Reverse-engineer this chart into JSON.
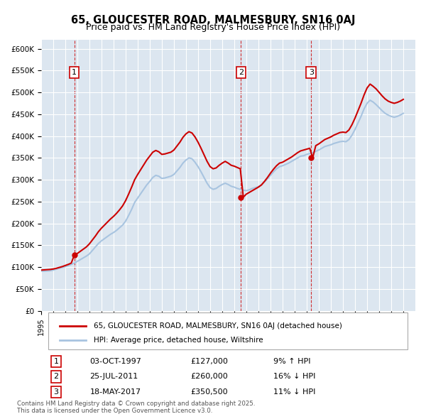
{
  "title": "65, GLOUCESTER ROAD, MALMESBURY, SN16 0AJ",
  "subtitle": "Price paid vs. HM Land Registry's House Price Index (HPI)",
  "xlabel": "",
  "ylabel": "",
  "ylim": [
    0,
    620000
  ],
  "yticks": [
    0,
    50000,
    100000,
    150000,
    200000,
    250000,
    300000,
    350000,
    400000,
    450000,
    500000,
    550000,
    600000
  ],
  "xlim_start": 1995.0,
  "xlim_end": 2026.0,
  "bg_color": "#dce6f0",
  "plot_bg_color": "#dce6f0",
  "grid_color": "#ffffff",
  "hpi_color": "#a8c4e0",
  "price_color": "#cc0000",
  "sale_marker_color": "#cc0000",
  "vline_color": "#cc0000",
  "transactions": [
    {
      "num": 1,
      "date_num": 1997.75,
      "price": 127000,
      "date_str": "03-OCT-1997",
      "pct": "9%",
      "dir": "↑"
    },
    {
      "num": 2,
      "date_num": 2011.56,
      "price": 260000,
      "date_str": "25-JUL-2011",
      "pct": "16%",
      "dir": "↓"
    },
    {
      "num": 3,
      "date_num": 2017.37,
      "price": 350500,
      "date_str": "18-MAY-2017",
      "pct": "11%",
      "dir": "↓"
    }
  ],
  "legend_label_price": "65, GLOUCESTER ROAD, MALMESBURY, SN16 0AJ (detached house)",
  "legend_label_hpi": "HPI: Average price, detached house, Wiltshire",
  "footnote": "Contains HM Land Registry data © Crown copyright and database right 2025.\nThis data is licensed under the Open Government Licence v3.0.",
  "hpi_data_x": [
    1995.0,
    1995.25,
    1995.5,
    1995.75,
    1996.0,
    1996.25,
    1996.5,
    1996.75,
    1997.0,
    1997.25,
    1997.5,
    1997.75,
    1998.0,
    1998.25,
    1998.5,
    1998.75,
    1999.0,
    1999.25,
    1999.5,
    1999.75,
    2000.0,
    2000.25,
    2000.5,
    2000.75,
    2001.0,
    2001.25,
    2001.5,
    2001.75,
    2002.0,
    2002.25,
    2002.5,
    2002.75,
    2003.0,
    2003.25,
    2003.5,
    2003.75,
    2004.0,
    2004.25,
    2004.5,
    2004.75,
    2005.0,
    2005.25,
    2005.5,
    2005.75,
    2006.0,
    2006.25,
    2006.5,
    2006.75,
    2007.0,
    2007.25,
    2007.5,
    2007.75,
    2008.0,
    2008.25,
    2008.5,
    2008.75,
    2009.0,
    2009.25,
    2009.5,
    2009.75,
    2010.0,
    2010.25,
    2010.5,
    2010.75,
    2011.0,
    2011.25,
    2011.5,
    2011.75,
    2012.0,
    2012.25,
    2012.5,
    2012.75,
    2013.0,
    2013.25,
    2013.5,
    2013.75,
    2014.0,
    2014.25,
    2014.5,
    2014.75,
    2015.0,
    2015.25,
    2015.5,
    2015.75,
    2016.0,
    2016.25,
    2016.5,
    2016.75,
    2017.0,
    2017.25,
    2017.5,
    2017.75,
    2018.0,
    2018.25,
    2018.5,
    2018.75,
    2019.0,
    2019.25,
    2019.5,
    2019.75,
    2020.0,
    2020.25,
    2020.5,
    2020.75,
    2021.0,
    2021.25,
    2021.5,
    2021.75,
    2022.0,
    2022.25,
    2022.5,
    2022.75,
    2023.0,
    2023.25,
    2023.5,
    2023.75,
    2024.0,
    2024.25,
    2024.5,
    2024.75,
    2025.0
  ],
  "hpi_data_y": [
    91000,
    90500,
    91000,
    91500,
    93000,
    95000,
    97000,
    99000,
    101000,
    103000,
    106000,
    109000,
    113000,
    117000,
    121000,
    125000,
    130000,
    138000,
    146000,
    154000,
    160000,
    165000,
    170000,
    175000,
    179000,
    184000,
    190000,
    196000,
    205000,
    218000,
    232000,
    248000,
    258000,
    268000,
    278000,
    288000,
    296000,
    305000,
    310000,
    308000,
    303000,
    304000,
    306000,
    308000,
    312000,
    320000,
    328000,
    338000,
    345000,
    350000,
    348000,
    340000,
    330000,
    318000,
    305000,
    292000,
    282000,
    278000,
    280000,
    285000,
    289000,
    292000,
    289000,
    285000,
    283000,
    280000,
    278000,
    276000,
    275000,
    277000,
    280000,
    282000,
    284000,
    288000,
    295000,
    302000,
    310000,
    318000,
    325000,
    330000,
    332000,
    335000,
    338000,
    342000,
    346000,
    350000,
    354000,
    355000,
    358000,
    360000,
    362000,
    365000,
    368000,
    372000,
    376000,
    378000,
    380000,
    383000,
    385000,
    387000,
    388000,
    387000,
    392000,
    402000,
    415000,
    430000,
    445000,
    462000,
    475000,
    482000,
    478000,
    472000,
    465000,
    458000,
    452000,
    448000,
    445000,
    443000,
    445000,
    448000,
    452000
  ],
  "price_data_x": [
    1995.0,
    1995.25,
    1995.5,
    1995.75,
    1996.0,
    1996.25,
    1996.5,
    1996.75,
    1997.0,
    1997.25,
    1997.5,
    1997.75,
    1998.0,
    1998.25,
    1998.5,
    1998.75,
    1999.0,
    1999.25,
    1999.5,
    1999.75,
    2000.0,
    2000.25,
    2000.5,
    2000.75,
    2001.0,
    2001.25,
    2001.5,
    2001.75,
    2002.0,
    2002.25,
    2002.5,
    2002.75,
    2003.0,
    2003.25,
    2003.5,
    2003.75,
    2004.0,
    2004.25,
    2004.5,
    2004.75,
    2005.0,
    2005.25,
    2005.5,
    2005.75,
    2006.0,
    2006.25,
    2006.5,
    2006.75,
    2007.0,
    2007.25,
    2007.5,
    2007.75,
    2008.0,
    2008.25,
    2008.5,
    2008.75,
    2009.0,
    2009.25,
    2009.5,
    2009.75,
    2010.0,
    2010.25,
    2010.5,
    2010.75,
    2011.0,
    2011.25,
    2011.5,
    2011.75,
    2012.0,
    2012.25,
    2012.5,
    2012.75,
    2013.0,
    2013.25,
    2013.5,
    2013.75,
    2014.0,
    2014.25,
    2014.5,
    2014.75,
    2015.0,
    2015.25,
    2015.5,
    2015.75,
    2016.0,
    2016.25,
    2016.5,
    2016.75,
    2017.0,
    2017.25,
    2017.5,
    2017.75,
    2018.0,
    2018.25,
    2018.5,
    2018.75,
    2019.0,
    2019.25,
    2019.5,
    2019.75,
    2020.0,
    2020.25,
    2020.5,
    2020.75,
    2021.0,
    2021.25,
    2021.5,
    2021.75,
    2022.0,
    2022.25,
    2022.5,
    2022.75,
    2023.0,
    2023.25,
    2023.5,
    2023.75,
    2024.0,
    2024.25,
    2024.5,
    2024.75,
    2025.0
  ],
  "price_data_y": [
    93000,
    93500,
    94000,
    94500,
    95500,
    97000,
    99000,
    101000,
    103500,
    106000,
    109000,
    127000,
    131000,
    136000,
    141000,
    146000,
    153000,
    162000,
    171000,
    181000,
    189000,
    196000,
    203000,
    210000,
    216000,
    223000,
    231000,
    240000,
    252000,
    267000,
    283000,
    300000,
    312000,
    323000,
    334000,
    345000,
    354000,
    363000,
    367000,
    364000,
    358000,
    359000,
    361000,
    363000,
    368000,
    377000,
    386000,
    397000,
    405000,
    410000,
    407000,
    398000,
    386000,
    372000,
    357000,
    342000,
    330000,
    325000,
    327000,
    333000,
    338000,
    342000,
    338000,
    333000,
    331000,
    328000,
    325000,
    260000,
    267000,
    271000,
    275000,
    279000,
    283000,
    288000,
    296000,
    305000,
    315000,
    324000,
    332000,
    338000,
    340000,
    344000,
    348000,
    352000,
    357000,
    362000,
    366000,
    368000,
    370000,
    372000,
    350500,
    378000,
    382000,
    387000,
    392000,
    395000,
    398000,
    402000,
    405000,
    408000,
    409000,
    408000,
    414000,
    426000,
    441000,
    458000,
    475000,
    494000,
    510000,
    519000,
    514000,
    508000,
    500000,
    492000,
    485000,
    480000,
    477000,
    475000,
    477000,
    480000,
    484000
  ]
}
